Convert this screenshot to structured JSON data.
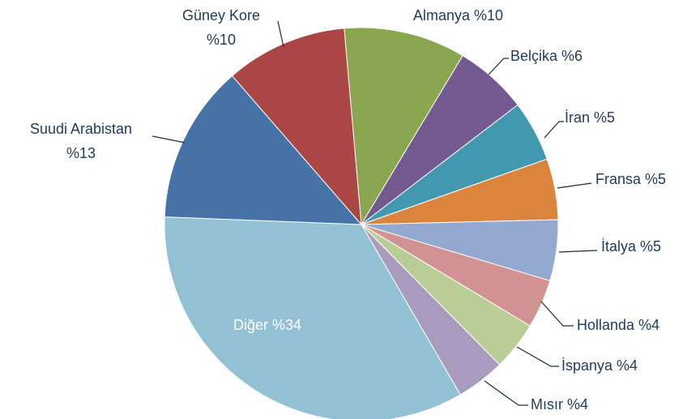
{
  "chart_data": {
    "type": "pie",
    "categories": [
      "Almanya",
      "Belçika",
      "İran",
      "Fransa",
      "İtalya",
      "Hollanda",
      "İspanya",
      "Mısır",
      "Diğer",
      "Suudi Arabistan",
      "Güney Kore"
    ],
    "values": [
      10,
      6,
      5,
      5,
      5,
      4,
      4,
      4,
      34,
      13,
      10
    ],
    "value_labels": [
      "%10",
      "%6",
      "%5",
      "%5",
      "%5",
      "%4",
      "%4",
      "%4",
      "%34",
      "%13",
      "%10"
    ],
    "colors": [
      "#8aa64f",
      "#725990",
      "#4298af",
      "#db843d",
      "#93a9cf",
      "#d19392",
      "#b9cd96",
      "#a99bbd",
      "#92c1d4",
      "#4572a7",
      "#aa4643"
    ]
  }
}
